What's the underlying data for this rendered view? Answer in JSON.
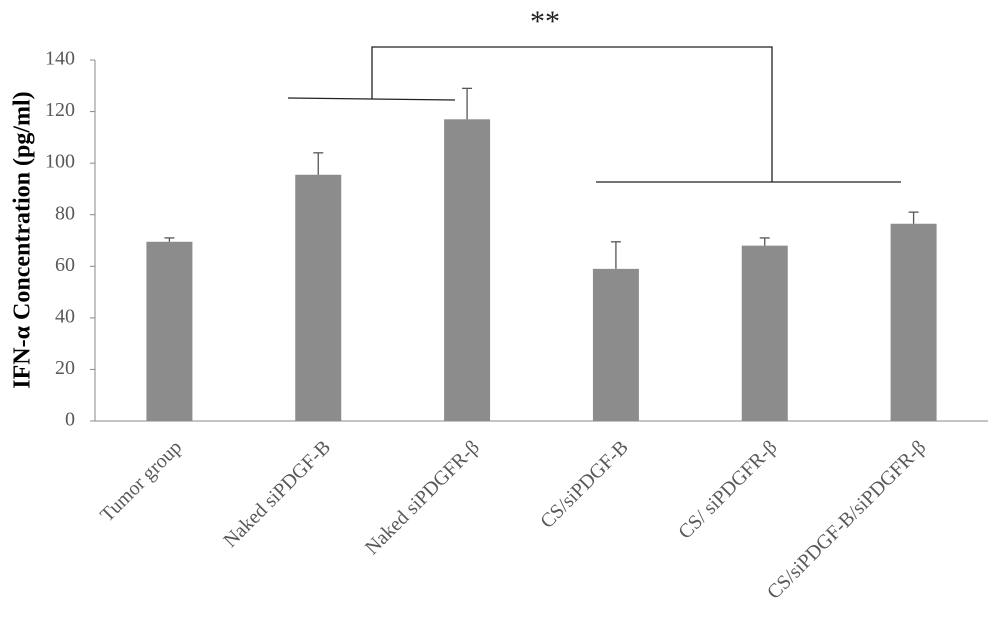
{
  "chart_data": {
    "type": "bar",
    "y_label": "IFN-α Concentration (pg/ml)",
    "annotation": "**",
    "categories": [
      "Tumor group",
      "Naked siPDGF-B",
      "Naked siPDGFR-β",
      "CS/siPDGF-B",
      "CS/ siPDGFR-β",
      "CS/siPDGF-B/siPDGFR-β"
    ],
    "values": [
      69.5,
      95.5,
      117,
      59,
      68,
      76.5
    ],
    "errors": [
      1.5,
      8.5,
      12,
      10.5,
      3,
      4.5
    ],
    "color": "#8c8c8c",
    "ylim": [
      0,
      140
    ],
    "yticks": [
      0,
      20,
      40,
      60,
      80,
      100,
      120,
      140
    ],
    "grid": false
  }
}
